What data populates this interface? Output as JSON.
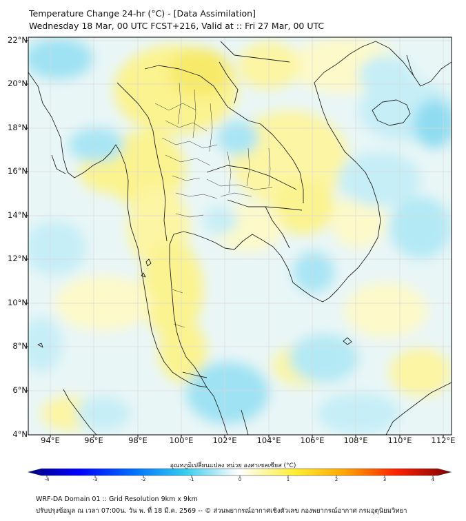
{
  "header": {
    "title_line1": "Temperature Change 24-hr (°C) - [Data Assimilation]",
    "title_line2": "Wednesday 18 Mar, 00 UTC FCST+216, Valid at :: Fri 27 Mar, 00 UTC"
  },
  "map": {
    "lat_labels": [
      "22°N",
      "20°N",
      "18°N",
      "16°N",
      "14°N",
      "12°N",
      "10°N",
      "8°N",
      "6°N",
      "4°N"
    ],
    "lon_labels": [
      "94°E",
      "96°E",
      "98°E",
      "100°E",
      "102°E",
      "104°E",
      "106°E",
      "108°E",
      "110°E",
      "112°E"
    ],
    "colors": {
      "warm": "#fbf38f",
      "warm_light": "#fdf9c9",
      "cool": "#c6eef7",
      "cool_strong": "#7fd8ef",
      "border": "#222222",
      "grid": "#d8d8d8"
    }
  },
  "colorbar": {
    "title": "อุณหภูมิเปลี่ยนแปลง หน่วย องศาเซลเซียส (°C)",
    "ticks": [
      "-4",
      "-3",
      "-2",
      "-1",
      "0",
      "1",
      "2",
      "3",
      "4"
    ]
  },
  "footer": {
    "line1": "WRF-DA Domain 01 :: Grid Resolution 9km x 9km",
    "line2": "ปรับปรุงข้อมูล ณ เวลา 07:00น. วัน พ. ที่ 18 มี.ค. 2569 -- © ส่วนพยากรณ์อากาศเชิงตัวเลข กองพยากรณ์อากาศ กรมอุตุนิยมวิทยา"
  }
}
